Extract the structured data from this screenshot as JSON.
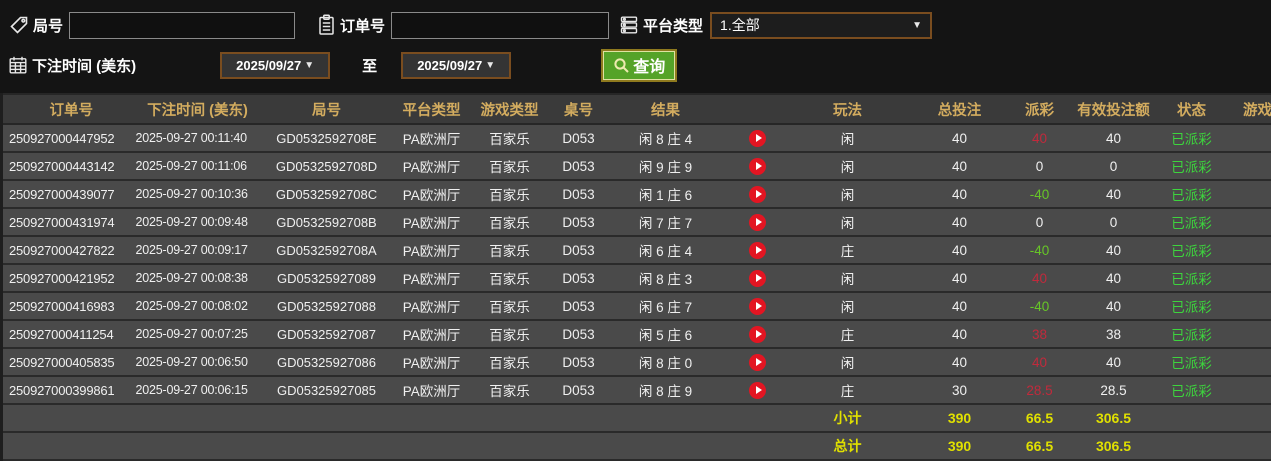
{
  "filters": {
    "round_label": "局号",
    "round_value": "",
    "order_label": "订单号",
    "order_value": "",
    "platform_label": "平台类型",
    "platform_value": "1.全部",
    "time_label": "下注时间 (美东)",
    "date_from": "2025/09/27",
    "to_label": "至",
    "date_to": "2025/09/27",
    "search_label": "查询"
  },
  "table": {
    "headers": [
      {
        "key": "order_no",
        "label": "订单号"
      },
      {
        "key": "bet_time",
        "label": "下注时间 (美东)"
      },
      {
        "key": "round_no",
        "label": "局号"
      },
      {
        "key": "platform",
        "label": "平台类型"
      },
      {
        "key": "game_type",
        "label": "游戏类型"
      },
      {
        "key": "table_no",
        "label": "桌号"
      },
      {
        "key": "result",
        "label": "结果"
      },
      {
        "key": "replay",
        "label": ""
      },
      {
        "key": "play_type",
        "label": "玩法"
      },
      {
        "key": "total_bet",
        "label": "总投注"
      },
      {
        "key": "payout",
        "label": "派彩"
      },
      {
        "key": "valid_bet",
        "label": "有效投注额"
      },
      {
        "key": "status",
        "label": "状态"
      },
      {
        "key": "game_detail",
        "label": "游戏"
      }
    ],
    "rows": [
      {
        "order_no": "250927000447952",
        "bet_time": "2025-09-27 00:11:40",
        "round_no": "GD0532592708E",
        "platform": "PA欧洲厅",
        "game_type": "百家乐",
        "table_no": "D053",
        "result": "闲 8 庄 4",
        "play_type": "闲",
        "total_bet": "40",
        "payout": "40",
        "valid_bet": "40",
        "status": "已派彩"
      },
      {
        "order_no": "250927000443142",
        "bet_time": "2025-09-27 00:11:06",
        "round_no": "GD0532592708D",
        "platform": "PA欧洲厅",
        "game_type": "百家乐",
        "table_no": "D053",
        "result": "闲 9 庄 9",
        "play_type": "闲",
        "total_bet": "40",
        "payout": "0",
        "valid_bet": "0",
        "status": "已派彩"
      },
      {
        "order_no": "250927000439077",
        "bet_time": "2025-09-27 00:10:36",
        "round_no": "GD0532592708C",
        "platform": "PA欧洲厅",
        "game_type": "百家乐",
        "table_no": "D053",
        "result": "闲 1 庄 6",
        "play_type": "闲",
        "total_bet": "40",
        "payout": "-40",
        "valid_bet": "40",
        "status": "已派彩"
      },
      {
        "order_no": "250927000431974",
        "bet_time": "2025-09-27 00:09:48",
        "round_no": "GD0532592708B",
        "platform": "PA欧洲厅",
        "game_type": "百家乐",
        "table_no": "D053",
        "result": "闲 7 庄 7",
        "play_type": "闲",
        "total_bet": "40",
        "payout": "0",
        "valid_bet": "0",
        "status": "已派彩"
      },
      {
        "order_no": "250927000427822",
        "bet_time": "2025-09-27 00:09:17",
        "round_no": "GD0532592708A",
        "platform": "PA欧洲厅",
        "game_type": "百家乐",
        "table_no": "D053",
        "result": "闲 6 庄 4",
        "play_type": "庄",
        "total_bet": "40",
        "payout": "-40",
        "valid_bet": "40",
        "status": "已派彩"
      },
      {
        "order_no": "250927000421952",
        "bet_time": "2025-09-27 00:08:38",
        "round_no": "GD05325927089",
        "platform": "PA欧洲厅",
        "game_type": "百家乐",
        "table_no": "D053",
        "result": "闲 8 庄 3",
        "play_type": "闲",
        "total_bet": "40",
        "payout": "40",
        "valid_bet": "40",
        "status": "已派彩"
      },
      {
        "order_no": "250927000416983",
        "bet_time": "2025-09-27 00:08:02",
        "round_no": "GD05325927088",
        "platform": "PA欧洲厅",
        "game_type": "百家乐",
        "table_no": "D053",
        "result": "闲 6 庄 7",
        "play_type": "闲",
        "total_bet": "40",
        "payout": "-40",
        "valid_bet": "40",
        "status": "已派彩"
      },
      {
        "order_no": "250927000411254",
        "bet_time": "2025-09-27 00:07:25",
        "round_no": "GD05325927087",
        "platform": "PA欧洲厅",
        "game_type": "百家乐",
        "table_no": "D053",
        "result": "闲 5 庄 6",
        "play_type": "庄",
        "total_bet": "40",
        "payout": "38",
        "valid_bet": "38",
        "status": "已派彩"
      },
      {
        "order_no": "250927000405835",
        "bet_time": "2025-09-27 00:06:50",
        "round_no": "GD05325927086",
        "platform": "PA欧洲厅",
        "game_type": "百家乐",
        "table_no": "D053",
        "result": "闲 8 庄 0",
        "play_type": "闲",
        "total_bet": "40",
        "payout": "40",
        "valid_bet": "40",
        "status": "已派彩"
      },
      {
        "order_no": "250927000399861",
        "bet_time": "2025-09-27 00:06:15",
        "round_no": "GD05325927085",
        "platform": "PA欧洲厅",
        "game_type": "百家乐",
        "table_no": "D053",
        "result": "闲 8 庄 9",
        "play_type": "庄",
        "total_bet": "30",
        "payout": "28.5",
        "valid_bet": "28.5",
        "status": "已派彩"
      }
    ],
    "subtotal": {
      "label": "小计",
      "total_bet": "390",
      "payout": "66.5",
      "valid_bet": "306.5"
    },
    "grand_total": {
      "label": "总计",
      "total_bet": "390",
      "payout": "66.5",
      "valid_bet": "306.5"
    }
  },
  "colors": {
    "accent_gold_header": "#d3ac5f",
    "payout_positive_red": "#c12a3c",
    "payout_negative_green": "#67c627",
    "status_paid_green": "#3dd53d",
    "summary_yellow": "#e0e000",
    "search_button_green": "#55a328",
    "select_border_brown": "#7a4d1f",
    "play_icon_red": "#e31522"
  }
}
